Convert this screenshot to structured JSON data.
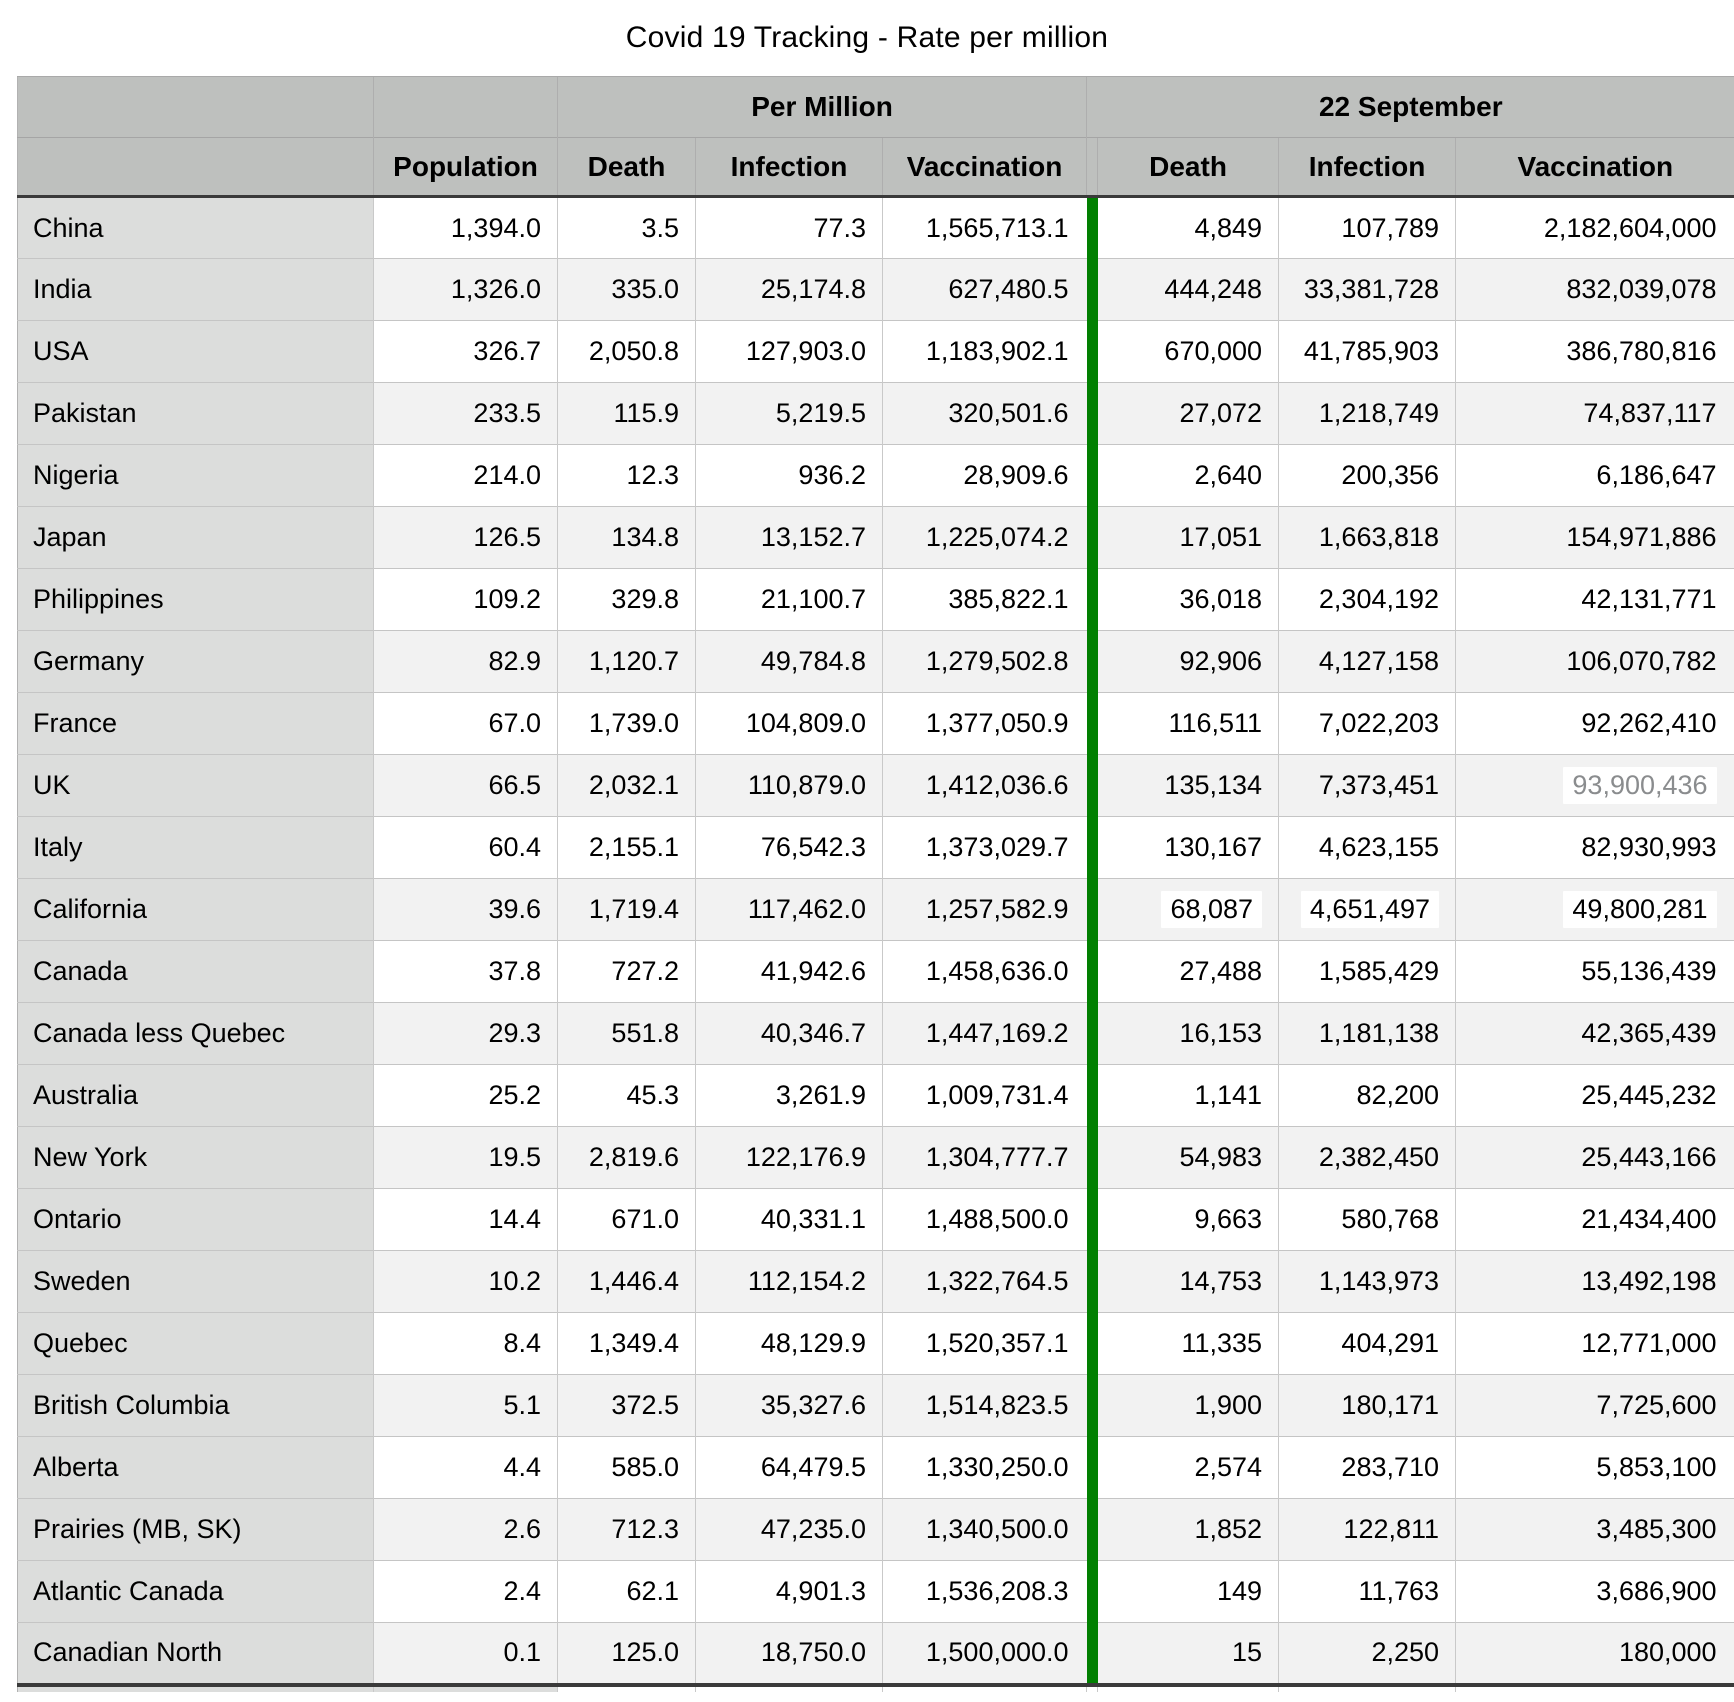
{
  "title": "Covid 19 Tracking - Rate per million",
  "colors": {
    "accent_green": "#018001",
    "header_gray": "#bec0be",
    "label_column_gray": "#dcdddc",
    "alt_row_gray": "#f2f2f2",
    "dim_value_text": "#8a8c8e"
  },
  "table": {
    "group_headers": {
      "per_million": "Per Million",
      "date": "22 September"
    },
    "column_headers": {
      "population": "Population",
      "pm_death": "Death",
      "pm_infection": "Infection",
      "pm_vaccination": "Vaccination",
      "sep_death": "Death",
      "sep_infection": "Infection",
      "sep_vaccination": "Vaccination"
    },
    "rows": [
      {
        "name": "China",
        "population": "1,394.0",
        "pm_death": "3.5",
        "pm_infection": "77.3",
        "pm_vaccination": "1,565,713.1",
        "sep_death": "4,849",
        "sep_infection": "107,789",
        "sep_vaccination": "2,182,604,000"
      },
      {
        "name": "India",
        "population": "1,326.0",
        "pm_death": "335.0",
        "pm_infection": "25,174.8",
        "pm_vaccination": "627,480.5",
        "sep_death": "444,248",
        "sep_infection": "33,381,728",
        "sep_vaccination": "832,039,078"
      },
      {
        "name": "USA",
        "population": "326.7",
        "pm_death": "2,050.8",
        "pm_infection": "127,903.0",
        "pm_vaccination": "1,183,902.1",
        "sep_death": "670,000",
        "sep_infection": "41,785,903",
        "sep_vaccination": "386,780,816"
      },
      {
        "name": "Pakistan",
        "population": "233.5",
        "pm_death": "115.9",
        "pm_infection": "5,219.5",
        "pm_vaccination": "320,501.6",
        "sep_death": "27,072",
        "sep_infection": "1,218,749",
        "sep_vaccination": "74,837,117"
      },
      {
        "name": "Nigeria",
        "population": "214.0",
        "pm_death": "12.3",
        "pm_infection": "936.2",
        "pm_vaccination": "28,909.6",
        "sep_death": "2,640",
        "sep_infection": "200,356",
        "sep_vaccination": "6,186,647"
      },
      {
        "name": "Japan",
        "population": "126.5",
        "pm_death": "134.8",
        "pm_infection": "13,152.7",
        "pm_vaccination": "1,225,074.2",
        "sep_death": "17,051",
        "sep_infection": "1,663,818",
        "sep_vaccination": "154,971,886"
      },
      {
        "name": "Philippines",
        "population": "109.2",
        "pm_death": "329.8",
        "pm_infection": "21,100.7",
        "pm_vaccination": "385,822.1",
        "sep_death": "36,018",
        "sep_infection": "2,304,192",
        "sep_vaccination": "42,131,771"
      },
      {
        "name": "Germany",
        "population": "82.9",
        "pm_death": "1,120.7",
        "pm_infection": "49,784.8",
        "pm_vaccination": "1,279,502.8",
        "sep_death": "92,906",
        "sep_infection": "4,127,158",
        "sep_vaccination": "106,070,782"
      },
      {
        "name": "France",
        "population": "67.0",
        "pm_death": "1,739.0",
        "pm_infection": "104,809.0",
        "pm_vaccination": "1,377,050.9",
        "sep_death": "116,511",
        "sep_infection": "7,022,203",
        "sep_vaccination": "92,262,410"
      },
      {
        "name": "UK",
        "population": "66.5",
        "pm_death": "2,032.1",
        "pm_infection": "110,879.0",
        "pm_vaccination": "1,412,036.6",
        "sep_death": "135,134",
        "sep_infection": "7,373,451",
        "sep_vaccination": "93,900,436",
        "highlight": [
          "sep_vaccination"
        ],
        "dim": [
          "sep_vaccination"
        ]
      },
      {
        "name": "Italy",
        "population": "60.4",
        "pm_death": "2,155.1",
        "pm_infection": "76,542.3",
        "pm_vaccination": "1,373,029.7",
        "sep_death": "130,167",
        "sep_infection": "4,623,155",
        "sep_vaccination": "82,930,993"
      },
      {
        "name": "California",
        "population": "39.6",
        "pm_death": "1,719.4",
        "pm_infection": "117,462.0",
        "pm_vaccination": "1,257,582.9",
        "sep_death": "68,087",
        "sep_infection": "4,651,497",
        "sep_vaccination": "49,800,281",
        "highlight": [
          "sep_death",
          "sep_infection",
          "sep_vaccination"
        ]
      },
      {
        "name": "Canada",
        "population": "37.8",
        "pm_death": "727.2",
        "pm_infection": "41,942.6",
        "pm_vaccination": "1,458,636.0",
        "sep_death": "27,488",
        "sep_infection": "1,585,429",
        "sep_vaccination": "55,136,439"
      },
      {
        "name": "Canada less Quebec",
        "population": "29.3",
        "pm_death": "551.8",
        "pm_infection": "40,346.7",
        "pm_vaccination": "1,447,169.2",
        "sep_death": "16,153",
        "sep_infection": "1,181,138",
        "sep_vaccination": "42,365,439"
      },
      {
        "name": "Australia",
        "population": "25.2",
        "pm_death": "45.3",
        "pm_infection": "3,261.9",
        "pm_vaccination": "1,009,731.4",
        "sep_death": "1,141",
        "sep_infection": "82,200",
        "sep_vaccination": "25,445,232"
      },
      {
        "name": "New York",
        "population": "19.5",
        "pm_death": "2,819.6",
        "pm_infection": "122,176.9",
        "pm_vaccination": "1,304,777.7",
        "sep_death": "54,983",
        "sep_infection": "2,382,450",
        "sep_vaccination": "25,443,166"
      },
      {
        "name": "Ontario",
        "population": "14.4",
        "pm_death": "671.0",
        "pm_infection": "40,331.1",
        "pm_vaccination": "1,488,500.0",
        "sep_death": "9,663",
        "sep_infection": "580,768",
        "sep_vaccination": "21,434,400"
      },
      {
        "name": "Sweden",
        "population": "10.2",
        "pm_death": "1,446.4",
        "pm_infection": "112,154.2",
        "pm_vaccination": "1,322,764.5",
        "sep_death": "14,753",
        "sep_infection": "1,143,973",
        "sep_vaccination": "13,492,198"
      },
      {
        "name": "Quebec",
        "population": "8.4",
        "pm_death": "1,349.4",
        "pm_infection": "48,129.9",
        "pm_vaccination": "1,520,357.1",
        "sep_death": "11,335",
        "sep_infection": "404,291",
        "sep_vaccination": "12,771,000"
      },
      {
        "name": "British Columbia",
        "population": "5.1",
        "pm_death": "372.5",
        "pm_infection": "35,327.6",
        "pm_vaccination": "1,514,823.5",
        "sep_death": "1,900",
        "sep_infection": "180,171",
        "sep_vaccination": "7,725,600"
      },
      {
        "name": "Alberta",
        "population": "4.4",
        "pm_death": "585.0",
        "pm_infection": "64,479.5",
        "pm_vaccination": "1,330,250.0",
        "sep_death": "2,574",
        "sep_infection": "283,710",
        "sep_vaccination": "5,853,100"
      },
      {
        "name": "Prairies (MB, SK)",
        "population": "2.6",
        "pm_death": "712.3",
        "pm_infection": "47,235.0",
        "pm_vaccination": "1,340,500.0",
        "sep_death": "1,852",
        "sep_infection": "122,811",
        "sep_vaccination": "3,485,300"
      },
      {
        "name": "Atlantic Canada",
        "population": "2.4",
        "pm_death": "62.1",
        "pm_infection": "4,901.3",
        "pm_vaccination": "1,536,208.3",
        "sep_death": "149",
        "sep_infection": "11,763",
        "sep_vaccination": "3,686,900"
      },
      {
        "name": "Canadian North",
        "population": "0.1",
        "pm_death": "125.0",
        "pm_infection": "18,750.0",
        "pm_vaccination": "1,500,000.0",
        "sep_death": "15",
        "sep_infection": "2,250",
        "sep_vaccination": "180,000"
      }
    ]
  }
}
